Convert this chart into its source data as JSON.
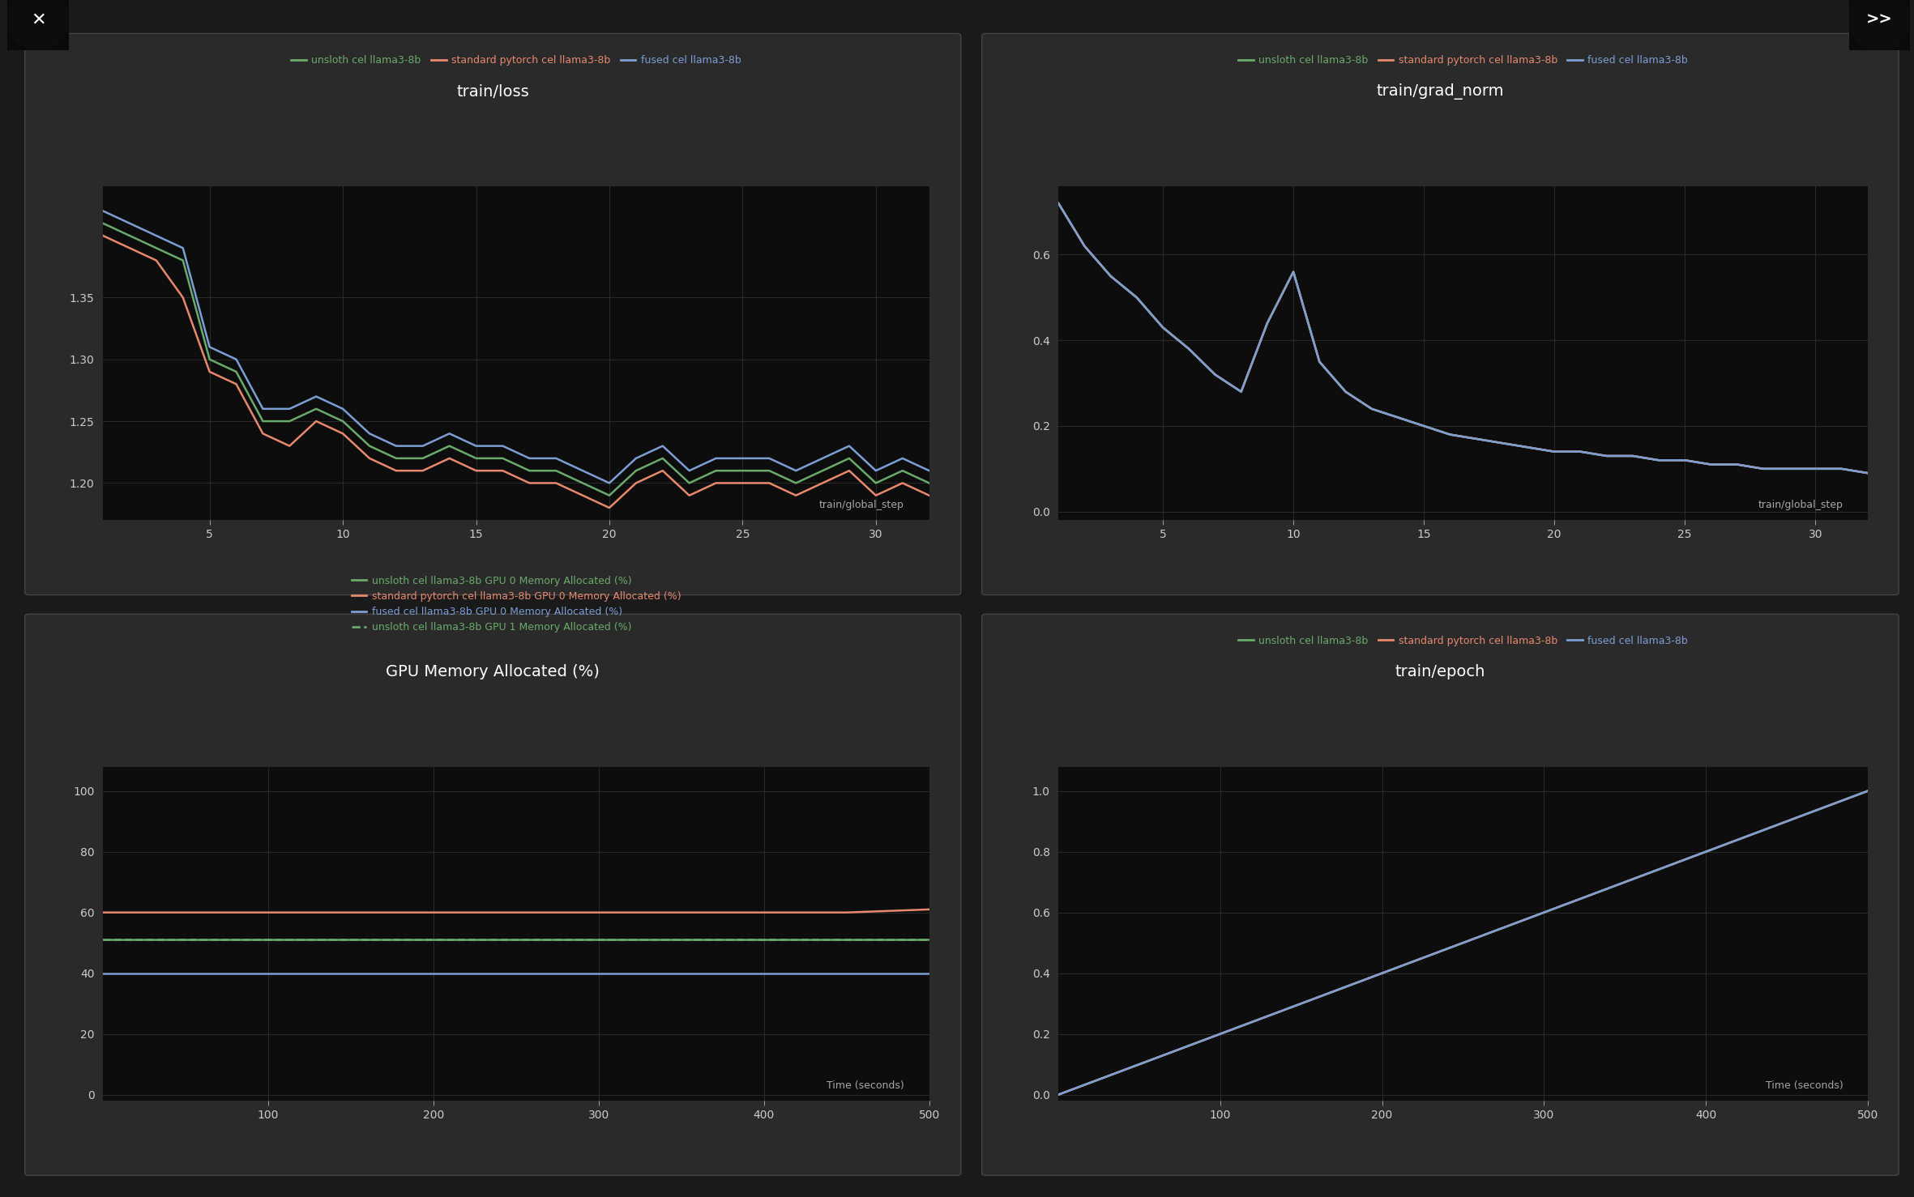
{
  "outer_bg": "#1a1a1a",
  "panel_bg": "#2a2a2a",
  "plot_bg": "#0d0d0d",
  "text_color": "#cccccc",
  "grid_color": "#383838",
  "colors": {
    "unsloth": "#6aaa6a",
    "standard": "#e8896e",
    "fused": "#7b9fd4"
  },
  "loss": {
    "title": "train/loss",
    "xlabel": "train/global_step",
    "steps": [
      1,
      2,
      3,
      4,
      5,
      6,
      7,
      8,
      9,
      10,
      11,
      12,
      13,
      14,
      15,
      16,
      17,
      18,
      19,
      20,
      21,
      22,
      23,
      24,
      25,
      26,
      27,
      28,
      29,
      30,
      31,
      32
    ],
    "unsloth": [
      1.41,
      1.4,
      1.39,
      1.38,
      1.3,
      1.29,
      1.25,
      1.25,
      1.26,
      1.25,
      1.23,
      1.22,
      1.22,
      1.23,
      1.22,
      1.22,
      1.21,
      1.21,
      1.2,
      1.19,
      1.21,
      1.22,
      1.2,
      1.21,
      1.21,
      1.21,
      1.2,
      1.21,
      1.22,
      1.2,
      1.21,
      1.2
    ],
    "standard": [
      1.4,
      1.39,
      1.38,
      1.35,
      1.29,
      1.28,
      1.24,
      1.23,
      1.25,
      1.24,
      1.22,
      1.21,
      1.21,
      1.22,
      1.21,
      1.21,
      1.2,
      1.2,
      1.19,
      1.18,
      1.2,
      1.21,
      1.19,
      1.2,
      1.2,
      1.2,
      1.19,
      1.2,
      1.21,
      1.19,
      1.2,
      1.19
    ],
    "fused": [
      1.42,
      1.41,
      1.4,
      1.39,
      1.31,
      1.3,
      1.26,
      1.26,
      1.27,
      1.26,
      1.24,
      1.23,
      1.23,
      1.24,
      1.23,
      1.23,
      1.22,
      1.22,
      1.21,
      1.2,
      1.22,
      1.23,
      1.21,
      1.22,
      1.22,
      1.22,
      1.21,
      1.22,
      1.23,
      1.21,
      1.22,
      1.21
    ],
    "ylim": [
      1.17,
      1.44
    ],
    "yticks": [
      1.2,
      1.25,
      1.3,
      1.35
    ]
  },
  "grad_norm": {
    "title": "train/grad_norm",
    "xlabel": "train/global_step",
    "steps": [
      1,
      2,
      3,
      4,
      5,
      6,
      7,
      8,
      9,
      10,
      11,
      12,
      13,
      14,
      15,
      16,
      17,
      18,
      19,
      20,
      21,
      22,
      23,
      24,
      25,
      26,
      27,
      28,
      29,
      30,
      31,
      32
    ],
    "unsloth": [
      0.72,
      0.62,
      0.55,
      0.5,
      0.43,
      0.38,
      0.32,
      0.28,
      0.44,
      0.56,
      0.35,
      0.28,
      0.24,
      0.22,
      0.2,
      0.18,
      0.17,
      0.16,
      0.15,
      0.14,
      0.14,
      0.13,
      0.13,
      0.12,
      0.12,
      0.11,
      0.11,
      0.1,
      0.1,
      0.1,
      0.1,
      0.09
    ],
    "standard": [
      0.72,
      0.62,
      0.55,
      0.5,
      0.43,
      0.38,
      0.32,
      0.28,
      0.44,
      0.56,
      0.35,
      0.28,
      0.24,
      0.22,
      0.2,
      0.18,
      0.17,
      0.16,
      0.15,
      0.14,
      0.14,
      0.13,
      0.13,
      0.12,
      0.12,
      0.11,
      0.11,
      0.1,
      0.1,
      0.1,
      0.1,
      0.09
    ],
    "fused": [
      0.72,
      0.62,
      0.55,
      0.5,
      0.43,
      0.38,
      0.32,
      0.28,
      0.44,
      0.56,
      0.35,
      0.28,
      0.24,
      0.22,
      0.2,
      0.18,
      0.17,
      0.16,
      0.15,
      0.14,
      0.14,
      0.13,
      0.13,
      0.12,
      0.12,
      0.11,
      0.11,
      0.1,
      0.1,
      0.1,
      0.1,
      0.09
    ],
    "ylim": [
      -0.02,
      0.76
    ],
    "yticks": [
      0.0,
      0.2,
      0.4,
      0.6
    ]
  },
  "gpu_memory": {
    "title": "GPU Memory Allocated (%)",
    "xlabel": "Time (seconds)",
    "time": [
      0,
      50,
      100,
      150,
      200,
      250,
      300,
      350,
      400,
      450,
      500
    ],
    "unsloth_gpu0": [
      51,
      51,
      51,
      51,
      51,
      51,
      51,
      51,
      51,
      51,
      51
    ],
    "standard_gpu0": [
      60,
      60,
      60,
      60,
      60,
      60,
      60,
      60,
      60,
      60,
      61
    ],
    "fused_gpu0": [
      40,
      40,
      40,
      40,
      40,
      40,
      40,
      40,
      40,
      40,
      40
    ],
    "unsloth_gpu1": [
      51,
      51,
      51,
      51,
      51,
      51,
      51,
      51,
      51,
      51,
      51
    ],
    "ylim": [
      -2,
      108
    ],
    "yticks": [
      0,
      20,
      40,
      60,
      80,
      100
    ]
  },
  "epoch": {
    "title": "train/epoch",
    "xlabel": "Time (seconds)",
    "time": [
      0,
      50,
      100,
      150,
      200,
      250,
      300,
      350,
      400,
      450,
      500
    ],
    "unsloth": [
      0.0,
      0.1,
      0.2,
      0.3,
      0.4,
      0.5,
      0.6,
      0.7,
      0.8,
      0.9,
      1.0
    ],
    "standard": [
      0.0,
      0.1,
      0.2,
      0.3,
      0.4,
      0.5,
      0.6,
      0.7,
      0.8,
      0.9,
      1.0
    ],
    "fused": [
      0.0,
      0.1,
      0.2,
      0.3,
      0.4,
      0.5,
      0.6,
      0.7,
      0.8,
      0.9,
      1.0
    ],
    "ylim": [
      -0.02,
      1.08
    ],
    "yticks": [
      0.0,
      0.2,
      0.4,
      0.6,
      0.8,
      1.0
    ]
  },
  "lw": 1.8,
  "title_fontsize": 14,
  "legend_fontsize": 9,
  "tick_fontsize": 10
}
